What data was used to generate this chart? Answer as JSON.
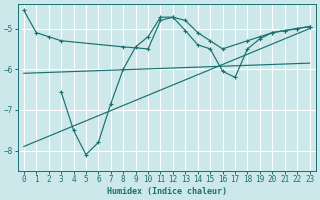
{
  "xlabel": "Humidex (Indice chaleur)",
  "bg_color": "#cde8ea",
  "grid_color": "#ffffff",
  "line_color": "#1a7070",
  "xlim": [
    -0.5,
    23.5
  ],
  "ylim": [
    -8.5,
    -4.4
  ],
  "yticks": [
    -8,
    -7,
    -6,
    -5
  ],
  "xticks": [
    0,
    1,
    2,
    3,
    4,
    5,
    6,
    7,
    8,
    9,
    10,
    11,
    12,
    13,
    14,
    15,
    16,
    17,
    18,
    19,
    20,
    21,
    22,
    23
  ],
  "line1_x": [
    0,
    1,
    2,
    3,
    8,
    10,
    11,
    12,
    13,
    14,
    15,
    16,
    18,
    19,
    20,
    21,
    22,
    23
  ],
  "line1_y": [
    -4.55,
    -5.1,
    -5.2,
    -5.3,
    -5.45,
    -5.5,
    -4.8,
    -4.72,
    -4.8,
    -5.1,
    -5.3,
    -5.5,
    -5.3,
    -5.2,
    -5.1,
    -5.05,
    -5.0,
    -4.95
  ],
  "line2_x": [
    0,
    23
  ],
  "line2_y": [
    -7.9,
    -5.0
  ],
  "line3_x": [
    3,
    4,
    5,
    6,
    7,
    8,
    9,
    10,
    11,
    12,
    13,
    14,
    15,
    16,
    17,
    18,
    19,
    20,
    21,
    22,
    23
  ],
  "line3_y": [
    -6.55,
    -7.5,
    -8.1,
    -7.8,
    -6.85,
    -6.0,
    -5.45,
    -5.2,
    -4.72,
    -4.72,
    -5.05,
    -5.4,
    -5.5,
    -6.05,
    -6.2,
    -5.5,
    -5.25,
    -5.1,
    -5.05,
    -5.0,
    -4.95
  ],
  "line4_x": [
    0,
    23
  ],
  "line4_y": [
    -6.1,
    -5.85
  ]
}
